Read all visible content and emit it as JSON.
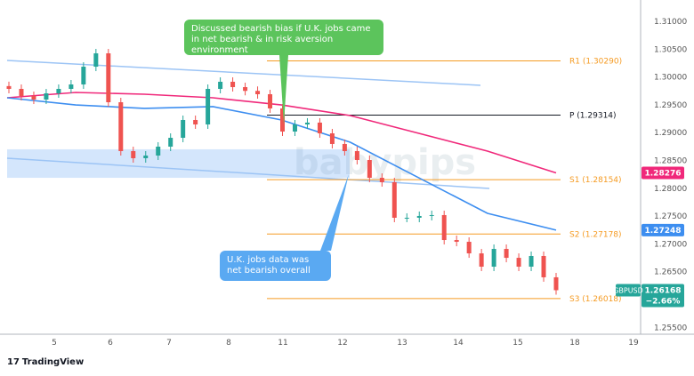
{
  "chart_data": {
    "type": "candlestick",
    "symbol": "GBPUSD",
    "last_price": "1.26168",
    "change": "−2.66%",
    "ylim": [
      1.2535,
      1.3125
    ],
    "y_ticks": [
      "1.31000",
      "1.30500",
      "1.30000",
      "1.29500",
      "1.29000",
      "1.28500",
      "1.28000",
      "1.27500",
      "1.27000",
      "1.26500",
      "1.25500"
    ],
    "x_ticks": [
      "5",
      "6",
      "7",
      "8",
      "11",
      "12",
      "13",
      "14",
      "15",
      "18",
      "19"
    ],
    "closes": [
      1.29786,
      1.29658,
      1.29594,
      1.29706,
      1.29786,
      1.29866,
      1.30185,
      1.30425,
      1.29546,
      1.28668,
      1.2854,
      1.28588,
      1.28748,
      1.28907,
      1.29227,
      1.29147,
      1.29786,
      1.29914,
      1.29818,
      1.2975,
      1.2969,
      1.29435,
      1.29019,
      1.29147,
      1.2918,
      1.28987,
      1.28796,
      1.28668,
      1.28508,
      1.28188,
      1.28109,
      1.2747,
      1.2747,
      1.27502,
      1.27518,
      1.2707,
      1.27038,
      1.2683,
      1.26591,
      1.2691,
      1.2675,
      1.26591,
      1.26783,
      1.264,
      1.26168
    ],
    "ma_slow": {
      "color": "#f0287a",
      "last": "1.28276",
      "values": [
        1.29626,
        1.29722,
        1.2969,
        1.29626,
        1.29498,
        1.29307,
        1.28987,
        1.28668,
        1.28276
      ]
    },
    "ma_fast": {
      "color": "#3d8ef0",
      "last": "1.27248",
      "values": [
        1.29626,
        1.29498,
        1.29435,
        1.29467,
        1.29227,
        1.28827,
        1.28188,
        1.2755,
        1.27248
      ]
    },
    "trendlines": [
      [
        1.30297,
        1.2985
      ],
      [
        1.2854,
        1.27997
      ]
    ],
    "zone": [
      1.287,
      1.28188
    ],
    "pivots": [
      {
        "label": "R1 (1.30290)",
        "value": 1.3029,
        "color": "#f59b23"
      },
      {
        "label": "P (1.29314)",
        "value": 1.29314,
        "color": "#131722"
      },
      {
        "label": "S1 (1.28154)",
        "value": 1.28154,
        "color": "#f59b23"
      },
      {
        "label": "S2 (1.27178)",
        "value": 1.27178,
        "color": "#f59b23"
      },
      {
        "label": "S3 (1.26018)",
        "value": 1.26018,
        "color": "#f59b23"
      }
    ],
    "up_color": "#26a69a",
    "down_color": "#ef5350"
  },
  "annotations": {
    "green": "Discussed bearish bias if U.K. jobs came in net bearish & in risk aversion environment",
    "blue": "U.K. jobs data was net bearish overall"
  },
  "watermark": "babypips",
  "brand": "TradingView"
}
